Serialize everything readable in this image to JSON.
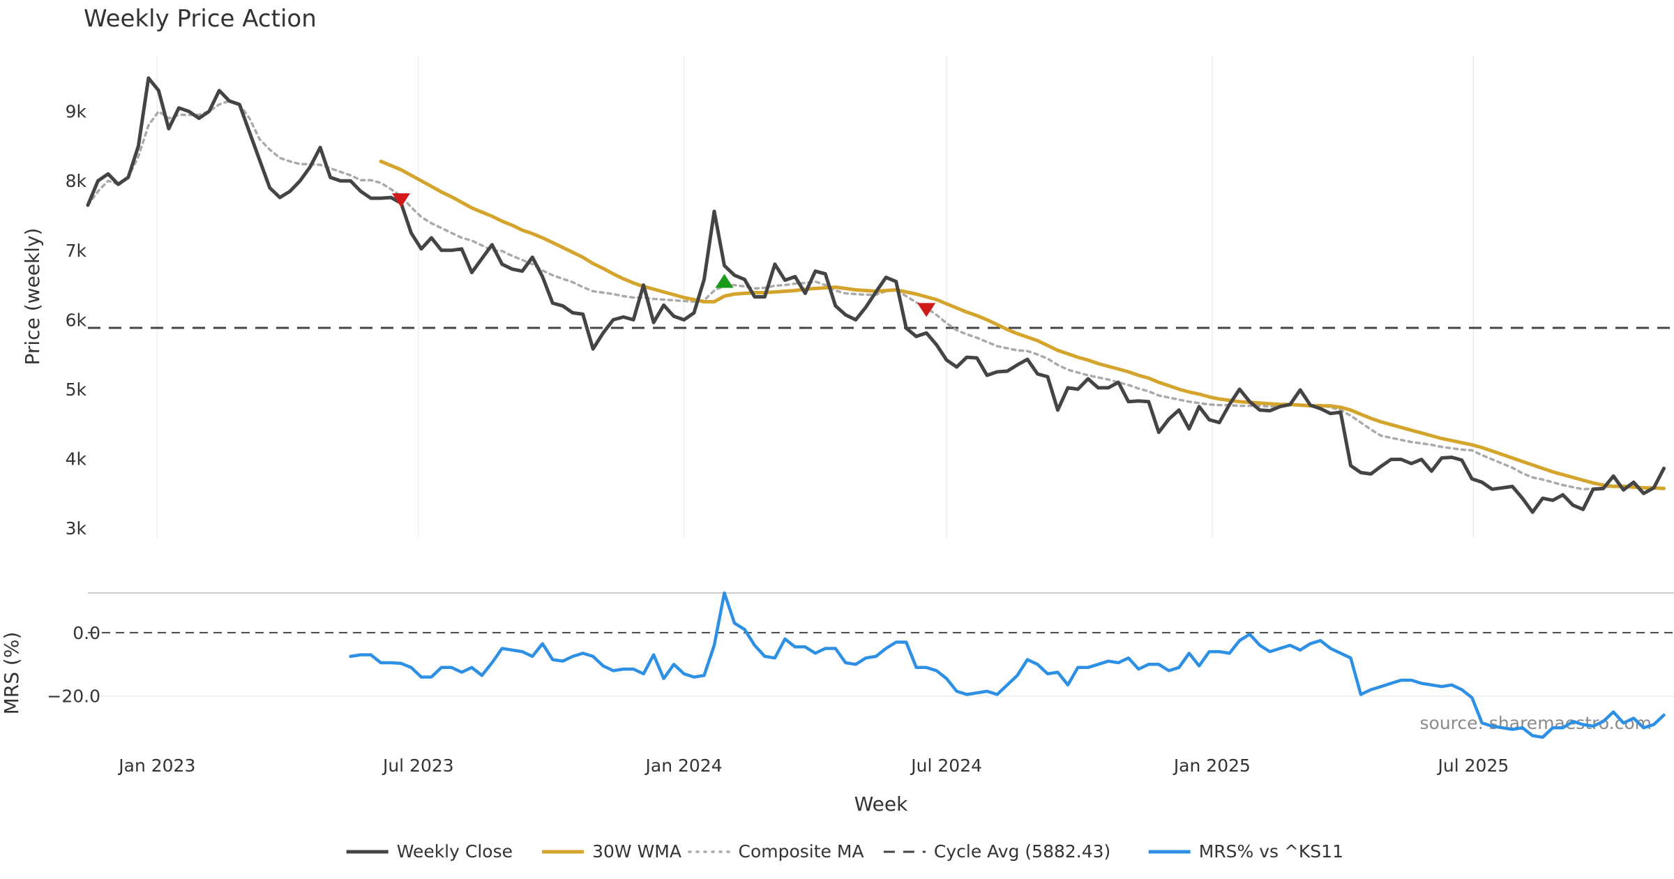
{
  "chart_data": {
    "type": "line",
    "title": "Weekly Price Action",
    "xlabel": "Week",
    "x_ticks": [
      "Jan 2023",
      "Jul 2023",
      "Jan 2024",
      "Jul 2024",
      "Jan 2025",
      "Jul 2025"
    ],
    "x_range": [
      "2022-11-14",
      "2025-11-17"
    ],
    "price_panel": {
      "ylabel": "Price (weekly)",
      "ylim": [
        2870,
        9800
      ],
      "y_ticks": [
        {
          "value": 3000,
          "label": "3k"
        },
        {
          "value": 4000,
          "label": "4k"
        },
        {
          "value": 5000,
          "label": "5k"
        },
        {
          "value": 6000,
          "label": "6k"
        },
        {
          "value": 7000,
          "label": "7k"
        },
        {
          "value": 8000,
          "label": "8k"
        },
        {
          "value": 9000,
          "label": "9k"
        }
      ],
      "grid": "vertical"
    },
    "mrs_panel": {
      "ylabel": "MRS (%)",
      "ylim": [
        -31.5,
        12.5
      ],
      "y_ticks": [
        {
          "value": 0,
          "label": "0.0"
        },
        {
          "value": -20,
          "label": "−20.0"
        }
      ],
      "zero_line": true
    },
    "series": [
      {
        "name": "Weekly Close",
        "color": "#444444",
        "style": "solid",
        "panel": "price",
        "start": "2022-11-14",
        "values": [
          7650,
          8000,
          8100,
          7950,
          8050,
          8500,
          9480,
          9300,
          8750,
          9050,
          9000,
          8900,
          9000,
          9300,
          9150,
          9100,
          8700,
          8300,
          7900,
          7760,
          7850,
          8000,
          8200,
          8480,
          8050,
          8000,
          8000,
          7850,
          7750,
          7750,
          7760,
          7680,
          7250,
          7020,
          7180,
          7000,
          7000,
          7020,
          6680,
          6880,
          7080,
          6800,
          6730,
          6700,
          6900,
          6620,
          6240,
          6200,
          6100,
          6080,
          5580,
          5810,
          6000,
          6040,
          6000,
          6500,
          5960,
          6210,
          6050,
          6000,
          6100,
          6580,
          7560,
          6780,
          6640,
          6580,
          6330,
          6330,
          6800,
          6570,
          6620,
          6380,
          6700,
          6660,
          6200,
          6070,
          6000,
          6180,
          6400,
          6610,
          6550,
          5880,
          5760,
          5810,
          5640,
          5420,
          5320,
          5460,
          5450,
          5200,
          5250,
          5260,
          5350,
          5430,
          5220,
          5180,
          4700,
          5020,
          5000,
          5150,
          5020,
          5020,
          5100,
          4820,
          4830,
          4820,
          4380,
          4570,
          4700,
          4430,
          4750,
          4560,
          4520,
          4780,
          5000,
          4820,
          4700,
          4690,
          4750,
          4780,
          4990,
          4770,
          4720,
          4650,
          4670,
          3900,
          3800,
          3780,
          3890,
          3990,
          3990,
          3930,
          3990,
          3820,
          4010,
          4020,
          3980,
          3710,
          3660,
          3560,
          3580,
          3600,
          3430,
          3230,
          3430,
          3400,
          3480,
          3330,
          3270,
          3560,
          3570,
          3750,
          3550,
          3660,
          3500,
          3580,
          3860
        ]
      },
      {
        "name": "30W WMA",
        "color": "#d4a52c",
        "style": "solid",
        "panel": "price",
        "start": "2023-06-05",
        "values": [
          8280,
          8220,
          8160,
          8080,
          8000,
          7920,
          7840,
          7770,
          7690,
          7610,
          7550,
          7490,
          7420,
          7360,
          7290,
          7240,
          7180,
          7110,
          7040,
          6970,
          6900,
          6810,
          6740,
          6660,
          6590,
          6530,
          6480,
          6440,
          6400,
          6360,
          6320,
          6290,
          6260,
          6260,
          6340,
          6370,
          6380,
          6390,
          6390,
          6400,
          6410,
          6420,
          6440,
          6450,
          6460,
          6470,
          6450,
          6430,
          6420,
          6410,
          6420,
          6430,
          6400,
          6370,
          6330,
          6290,
          6230,
          6170,
          6110,
          6060,
          6000,
          5930,
          5860,
          5800,
          5750,
          5700,
          5630,
          5560,
          5510,
          5460,
          5420,
          5370,
          5330,
          5290,
          5250,
          5200,
          5160,
          5100,
          5050,
          5000,
          4960,
          4930,
          4890,
          4860,
          4840,
          4820,
          4810,
          4800,
          4790,
          4780,
          4780,
          4770,
          4760,
          4760,
          4760,
          4740,
          4700,
          4640,
          4580,
          4530,
          4490,
          4450,
          4410,
          4370,
          4330,
          4290,
          4260,
          4230,
          4200,
          4160,
          4110,
          4060,
          4010,
          3960,
          3910,
          3860,
          3810,
          3770,
          3730,
          3690,
          3650,
          3620,
          3600,
          3600,
          3590,
          3580,
          3580,
          3570
        ]
      },
      {
        "name": "Composite MA",
        "color": "#aaaaaa",
        "style": "dotted",
        "panel": "price",
        "start": "2022-11-14",
        "values": [
          7650,
          7850,
          8000,
          7950,
          8050,
          8350,
          8800,
          9000,
          8900,
          8950,
          8950,
          8950,
          9000,
          9100,
          9150,
          9100,
          8900,
          8600,
          8450,
          8330,
          8280,
          8240,
          8240,
          8230,
          8180,
          8130,
          8080,
          8010,
          8010,
          7970,
          7880,
          7780,
          7620,
          7480,
          7390,
          7320,
          7250,
          7180,
          7140,
          7070,
          7000,
          6990,
          6920,
          6860,
          6800,
          6710,
          6640,
          6590,
          6540,
          6470,
          6410,
          6390,
          6370,
          6340,
          6320,
          6320,
          6300,
          6290,
          6280,
          6270,
          6260,
          6280,
          6420,
          6490,
          6500,
          6480,
          6450,
          6460,
          6490,
          6500,
          6520,
          6530,
          6550,
          6500,
          6420,
          6380,
          6370,
          6360,
          6360,
          6410,
          6430,
          6340,
          6250,
          6170,
          6070,
          5950,
          5850,
          5790,
          5740,
          5680,
          5620,
          5590,
          5560,
          5550,
          5500,
          5440,
          5350,
          5280,
          5240,
          5200,
          5170,
          5140,
          5100,
          5060,
          5010,
          4970,
          4910,
          4880,
          4850,
          4820,
          4800,
          4780,
          4770,
          4770,
          4760,
          4760,
          4760,
          4750,
          4760,
          4770,
          4780,
          4770,
          4770,
          4740,
          4700,
          4620,
          4520,
          4420,
          4330,
          4300,
          4270,
          4240,
          4220,
          4200,
          4170,
          4150,
          4130,
          4120,
          4050,
          3990,
          3930,
          3870,
          3790,
          3730,
          3700,
          3660,
          3620,
          3590,
          3560,
          3570,
          3580,
          3610,
          3610,
          3600,
          3570,
          3570,
          3580
        ]
      },
      {
        "name": "Cycle Avg (5882.43)",
        "color": "#444444",
        "style": "dashed",
        "panel": "price",
        "value": 5882.43
      },
      {
        "name": "MRS% vs ^KS11",
        "color": "#2e90e5",
        "style": "solid",
        "panel": "mrs",
        "start": "2023-05-15",
        "values": [
          -7.5,
          -7,
          -7,
          -9.5,
          -9.5,
          -9.7,
          -11,
          -14,
          -14,
          -11,
          -11,
          -12.5,
          -11,
          -13.5,
          -9.5,
          -5,
          -5.5,
          -6,
          -7.5,
          -3.5,
          -8.5,
          -9,
          -7.5,
          -6.5,
          -7.5,
          -10.5,
          -12,
          -11.5,
          -11.5,
          -13,
          -7,
          -14.5,
          -10,
          -13,
          -14,
          -13.5,
          -4,
          12.5,
          3,
          1,
          -4,
          -7.5,
          -8,
          -2,
          -4.5,
          -4.5,
          -6.5,
          -5,
          -5,
          -9.5,
          -10,
          -8,
          -7.5,
          -5,
          -3,
          -3,
          -11,
          -11,
          -12,
          -14.5,
          -18.5,
          -19.5,
          -19,
          -18.5,
          -19.5,
          -16.5,
          -13.5,
          -8.5,
          -10,
          -13,
          -12.5,
          -16.5,
          -11,
          -11,
          -10,
          -9,
          -9.5,
          -8,
          -11.5,
          -10,
          -10,
          -12,
          -11,
          -6.5,
          -10.5,
          -6,
          -6,
          -6.5,
          -2.5,
          -0.5,
          -4,
          -6,
          -5,
          -4,
          -5.5,
          -3.5,
          -2.5,
          -5,
          -6.5,
          -8,
          -19.5,
          -18,
          -17,
          -16,
          -15,
          -15,
          -16,
          -16.5,
          -17,
          -16.5,
          -18,
          -20.5,
          -28.5,
          -29.5,
          -30,
          -30.5,
          -30,
          -32.5,
          -33,
          -30,
          -30,
          -28,
          -29,
          -29.5,
          -28,
          -25,
          -28.5,
          -27,
          -30,
          -29,
          -26
        ]
      }
    ],
    "markers": [
      {
        "kind": "sell",
        "shape": "triangle-down",
        "color": "#d11a1a",
        "panel": "price",
        "x": "2023-06-19",
        "y": 7720
      },
      {
        "kind": "buy",
        "shape": "triangle-up",
        "color": "#1a9a1a",
        "panel": "price",
        "x": "2024-01-29",
        "y": 6560
      },
      {
        "kind": "sell",
        "shape": "triangle-down",
        "color": "#d11a1a",
        "panel": "price",
        "x": "2024-06-17",
        "y": 6140
      }
    ],
    "legend": {
      "position": "bottom-center",
      "entries": [
        {
          "label": "Weekly Close",
          "color": "#444444",
          "style": "solid"
        },
        {
          "label": "30W WMA",
          "color": "#d4a52c",
          "style": "solid"
        },
        {
          "label": "Composite MA",
          "color": "#aaaaaa",
          "style": "dotted"
        },
        {
          "label": "Cycle Avg (5882.43)",
          "color": "#444444",
          "style": "dashed"
        },
        {
          "label": "MRS% vs ^KS11",
          "color": "#2e90e5",
          "style": "solid"
        }
      ]
    },
    "annotations": [
      {
        "text": "source: sharemaestro.com",
        "placement": "bottom-right of MRS panel"
      }
    ]
  }
}
